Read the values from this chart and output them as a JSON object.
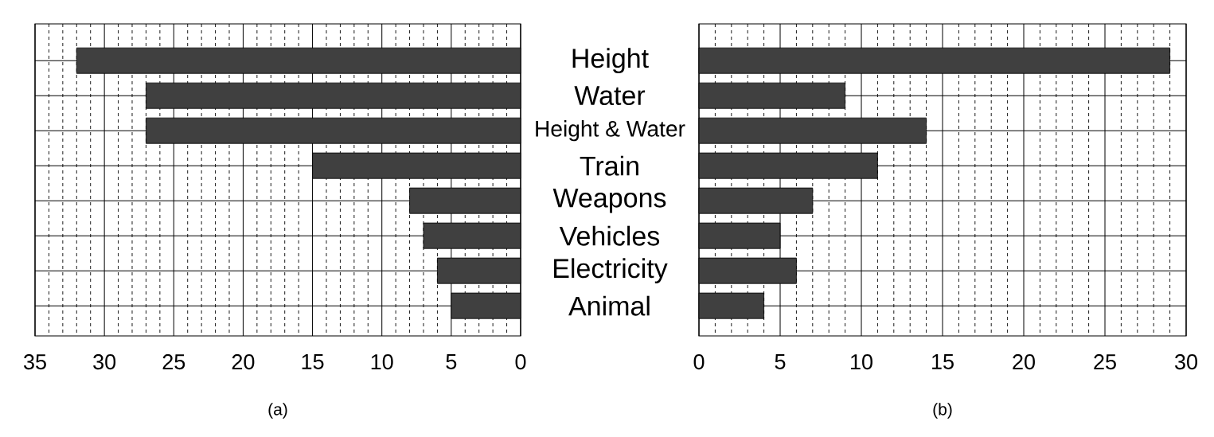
{
  "chart_data": [
    {
      "type": "bar",
      "orientation": "horizontal",
      "categories": [
        "Height",
        "Water",
        "Height & Water",
        "Train",
        "Weapons",
        "Vehicles",
        "Electricity",
        "Animal"
      ],
      "values": [
        32,
        27,
        27,
        15,
        8,
        7,
        6,
        5
      ],
      "color": "#404040",
      "xlim": [
        35,
        0
      ],
      "xticks": [
        35,
        30,
        25,
        20,
        15,
        10,
        5,
        0
      ],
      "grid": true,
      "annotations": [
        "(a)"
      ]
    },
    {
      "type": "bar",
      "orientation": "horizontal",
      "categories": [
        null,
        null,
        null,
        null,
        null,
        null,
        null,
        null
      ],
      "values": [
        29,
        9,
        14,
        11,
        7,
        5,
        6,
        4
      ],
      "color": "#404040",
      "xlim": [
        0,
        30
      ],
      "xticks": [
        0,
        5,
        10,
        15,
        20,
        25,
        30
      ],
      "grid": true,
      "annotations": [
        "(b)"
      ]
    }
  ]
}
